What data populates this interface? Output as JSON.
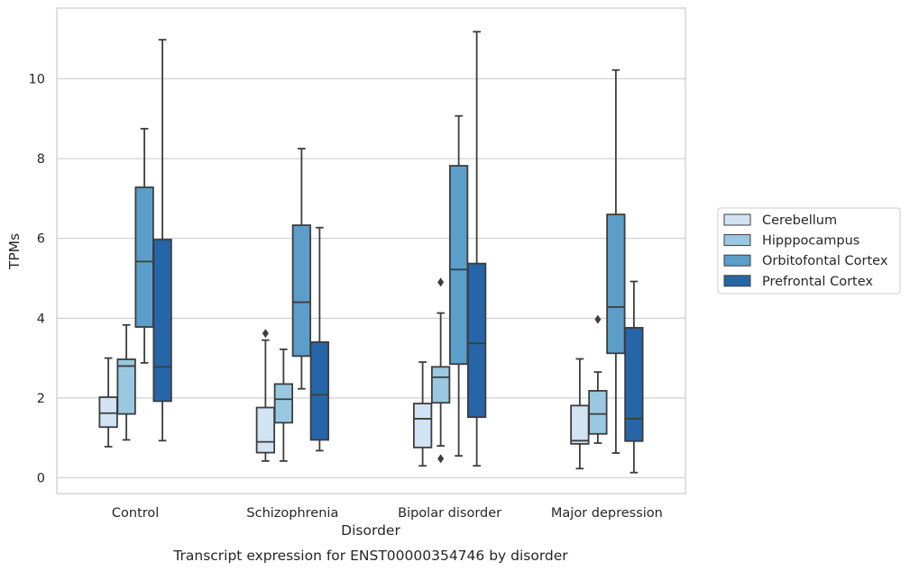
{
  "caption": "Transcript expression for ENST00000354746 by disorder",
  "chart_data": {
    "type": "box",
    "xlabel": "Disorder",
    "ylabel": "TPMs",
    "ylim": [
      -0.4,
      11.75
    ],
    "yticks": [
      0,
      2,
      4,
      6,
      8,
      10
    ],
    "grid": "horizontal",
    "legend_position": "right",
    "categories": [
      "Control",
      "Schizophrenia",
      "Bipolar disorder",
      "Major depression"
    ],
    "series": [
      {
        "name": "Cerebellum",
        "color": "#d2e3f3",
        "boxes": [
          {
            "whisker_low": 0.78,
            "q1": 1.27,
            "median": 1.62,
            "q3": 2.02,
            "whisker_high": 3.0,
            "fliers": []
          },
          {
            "whisker_low": 0.42,
            "q1": 0.63,
            "median": 0.9,
            "q3": 1.76,
            "whisker_high": 3.45,
            "fliers": [
              3.62
            ]
          },
          {
            "whisker_low": 0.3,
            "q1": 0.76,
            "median": 1.48,
            "q3": 1.86,
            "whisker_high": 2.9,
            "fliers": []
          },
          {
            "whisker_low": 0.23,
            "q1": 0.85,
            "median": 0.93,
            "q3": 1.81,
            "whisker_high": 2.98,
            "fliers": []
          }
        ]
      },
      {
        "name": "Hipppocampus",
        "color": "#9ac8e0",
        "boxes": [
          {
            "whisker_low": 0.95,
            "q1": 1.6,
            "median": 2.8,
            "q3": 2.97,
            "whisker_high": 3.83,
            "fliers": []
          },
          {
            "whisker_low": 0.42,
            "q1": 1.38,
            "median": 1.97,
            "q3": 2.35,
            "whisker_high": 3.22,
            "fliers": []
          },
          {
            "whisker_low": 0.8,
            "q1": 1.88,
            "median": 2.52,
            "q3": 2.78,
            "whisker_high": 4.13,
            "fliers": [
              0.48,
              4.9
            ]
          },
          {
            "whisker_low": 0.87,
            "q1": 1.1,
            "median": 1.6,
            "q3": 2.18,
            "whisker_high": 2.65,
            "fliers": [
              3.97
            ]
          }
        ]
      },
      {
        "name": "Orbitofontal Cortex",
        "color": "#5a9ec9",
        "boxes": [
          {
            "whisker_low": 2.88,
            "q1": 3.78,
            "median": 5.42,
            "q3": 7.28,
            "whisker_high": 8.75,
            "fliers": []
          },
          {
            "whisker_low": 2.23,
            "q1": 3.05,
            "median": 4.4,
            "q3": 6.33,
            "whisker_high": 8.25,
            "fliers": []
          },
          {
            "whisker_low": 0.55,
            "q1": 2.85,
            "median": 5.22,
            "q3": 7.82,
            "whisker_high": 9.07,
            "fliers": []
          },
          {
            "whisker_low": 0.62,
            "q1": 3.12,
            "median": 4.28,
            "q3": 6.6,
            "whisker_high": 10.22,
            "fliers": []
          }
        ]
      },
      {
        "name": "Prefrontal Cortex",
        "color": "#2666a8",
        "boxes": [
          {
            "whisker_low": 0.93,
            "q1": 1.92,
            "median": 2.78,
            "q3": 5.97,
            "whisker_high": 10.98,
            "fliers": []
          },
          {
            "whisker_low": 0.68,
            "q1": 0.95,
            "median": 2.08,
            "q3": 3.4,
            "whisker_high": 6.27,
            "fliers": []
          },
          {
            "whisker_low": 0.3,
            "q1": 1.52,
            "median": 3.37,
            "q3": 5.37,
            "whisker_high": 11.18,
            "fliers": []
          },
          {
            "whisker_low": 0.13,
            "q1": 0.92,
            "median": 1.48,
            "q3": 3.76,
            "whisker_high": 4.92,
            "fliers": []
          }
        ]
      }
    ]
  }
}
